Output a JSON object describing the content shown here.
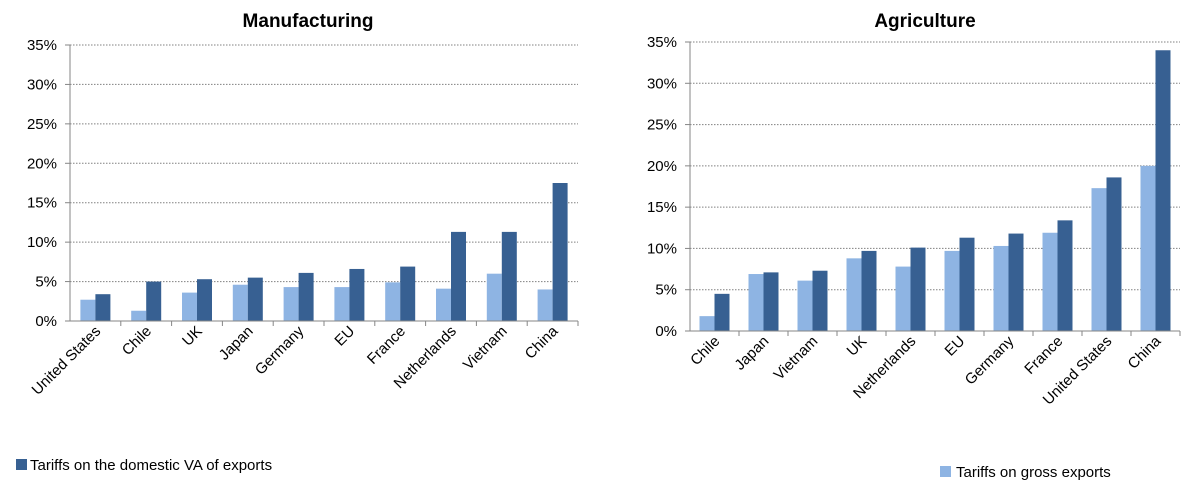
{
  "colors": {
    "gross": "#8EB4E3",
    "domestic": "#376092",
    "gridline": "#808080",
    "axis": "#868686"
  },
  "chart_data": [
    {
      "type": "bar",
      "title": "Manufacturing",
      "categories": [
        "United States",
        "Chile",
        "UK",
        "Japan",
        "Germany",
        "EU",
        "France",
        "Netherlands",
        "Vietnam",
        "China"
      ],
      "series": [
        {
          "name": "Tariffs on gross exports",
          "key": "gross",
          "values": [
            2.7,
            1.3,
            3.6,
            4.6,
            4.3,
            4.3,
            4.9,
            4.1,
            6.0,
            4.0
          ]
        },
        {
          "name": "Tariffs on the domestic VA of exports",
          "key": "domestic",
          "values": [
            3.4,
            5.0,
            5.3,
            5.5,
            6.1,
            6.6,
            6.9,
            11.3,
            11.3,
            17.5
          ]
        }
      ],
      "yticks": [
        "0%",
        "5%",
        "10%",
        "15%",
        "20%",
        "25%",
        "30%",
        "35%"
      ],
      "ylim": [
        0,
        35
      ],
      "grid": true,
      "legend": {
        "entries": [
          "Tariffs on the domestic VA of exports"
        ],
        "placement": "bottom-left"
      }
    },
    {
      "type": "bar",
      "title": "Agriculture",
      "categories": [
        "Chile",
        "Japan",
        "Vietnam",
        "UK",
        "Netherlands",
        "EU",
        "Germany",
        "France",
        "United States",
        "China"
      ],
      "series": [
        {
          "name": "Tariffs on gross exports",
          "key": "gross",
          "values": [
            1.8,
            6.9,
            6.1,
            8.8,
            7.8,
            9.7,
            10.3,
            11.9,
            17.3,
            20.0
          ]
        },
        {
          "name": "Tariffs on the domestic VA of exports",
          "key": "domestic",
          "values": [
            4.5,
            7.1,
            7.3,
            9.7,
            10.1,
            11.3,
            11.8,
            13.4,
            18.6,
            34.0
          ]
        }
      ],
      "yticks": [
        "0%",
        "5%",
        "10%",
        "15%",
        "20%",
        "25%",
        "30%",
        "35%"
      ],
      "ylim": [
        0,
        35
      ],
      "grid": true,
      "legend": {
        "entries": [
          "Tariffs on gross exports"
        ],
        "placement": "bottom-right"
      }
    }
  ]
}
